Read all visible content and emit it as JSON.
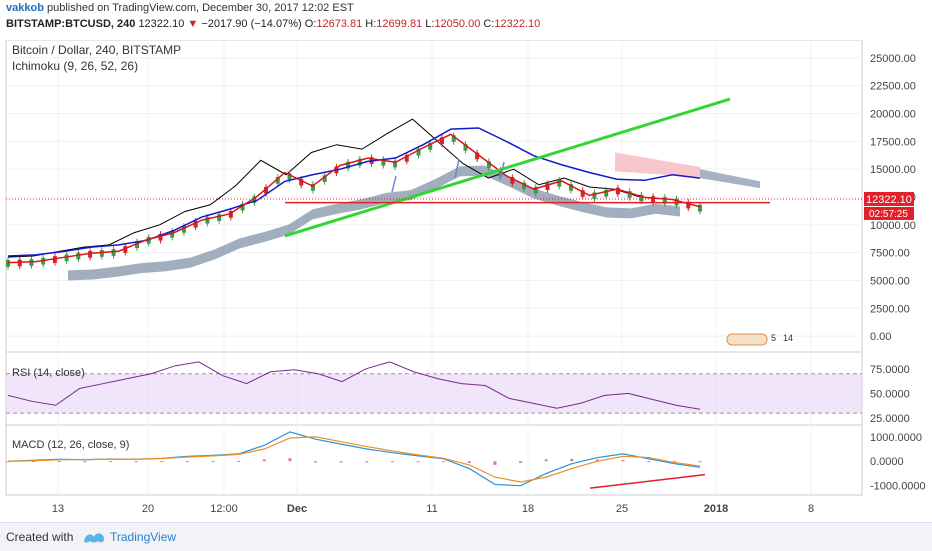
{
  "header": {
    "author": "vakkob",
    "published_text": "published on TradingView.com, December 30, 2017 12:02 EST",
    "symbol": "BITSTAMP:BTCUSD, 240",
    "last": "12322.10",
    "change": "−2017.90 (−14.07%)",
    "open_label": "O:",
    "open": "12673.81",
    "high_label": "H:",
    "high": "12699.81",
    "low_label": "L:",
    "low": "12050.00",
    "close_label": "C:",
    "close": "12322.10"
  },
  "footer": {
    "created_with": "Created with",
    "brand": "TradingView"
  },
  "colors": {
    "price_line": "#000000",
    "candle_up": "#3c9b45",
    "candle_down": "#d1262c",
    "kijun": "#1419c8",
    "tenkan": "#d9141b",
    "cloud": "#8193a8",
    "cloud_red": "#f5b9c0",
    "trend_green": "#32d632",
    "support_red": "#e2202a",
    "rsi": "#7a2a8f",
    "rsi_band": "#e8d6f5",
    "macd": "#2b93d7",
    "signal": "#f28e20"
  },
  "chart_data": [
    {
      "type": "line",
      "title": "Bitcoin / Dollar, 240, BITSTAMP",
      "indicator": "Ichimoku (9, 26, 52, 26)",
      "ylim": [
        -1250,
        26250
      ],
      "y_ticks": [
        "25000.00",
        "22500.00",
        "20000.00",
        "17500.00",
        "15000.00",
        "12500.00",
        "10000.00",
        "7500.00",
        "5000.00",
        "2500.00",
        "0.00"
      ],
      "x_ticks": [
        "13",
        "20",
        "12:00",
        "Dec",
        "11",
        "18",
        "25",
        "2018",
        "8"
      ],
      "price_label": "12322.10",
      "countdown_label": "02:57:25",
      "support_level": 12000,
      "badge": [
        "5",
        "14"
      ],
      "price_series": [
        7100,
        7200,
        7600,
        8000,
        8200,
        9300,
        10000,
        11200,
        11800,
        13500,
        15800,
        14500,
        16500,
        17200,
        16800,
        18200,
        19500,
        17500,
        15500,
        14200,
        15000,
        13600,
        14200,
        13400,
        13200,
        12500
      ],
      "kijun": [
        7200,
        7300,
        7600,
        8000,
        8200,
        8600,
        9500,
        10700,
        11400,
        12200,
        13900,
        14500,
        15000,
        15700,
        16000,
        17200,
        18600,
        18700,
        17500,
        16200,
        15400,
        14700,
        14100,
        14000,
        14500,
        14200
      ]
    },
    {
      "type": "line",
      "title": "RSI (14, close)",
      "ylim": [
        20,
        90
      ],
      "y_ticks": [
        "75.0000",
        "50.0000",
        "25.0000"
      ],
      "band": [
        30,
        70
      ],
      "values": [
        48,
        42,
        38,
        55,
        60,
        65,
        70,
        78,
        82,
        68,
        60,
        72,
        74,
        70,
        62,
        75,
        82,
        72,
        65,
        60,
        58,
        45,
        40,
        35,
        40,
        48,
        50,
        44,
        38,
        34
      ]
    },
    {
      "type": "line",
      "title": "MACD (12, 26, close, 9)",
      "ylim": [
        -1300,
        1400
      ],
      "y_ticks": [
        "1000.0000",
        "0.0000",
        "-1000.0000"
      ],
      "macd": [
        0,
        40,
        80,
        60,
        90,
        80,
        120,
        200,
        240,
        300,
        650,
        1200,
        900,
        700,
        500,
        350,
        220,
        100,
        -300,
        -950,
        -1000,
        -500,
        -100,
        150,
        300,
        100,
        -100,
        -250
      ],
      "signal": [
        0,
        20,
        60,
        70,
        80,
        80,
        110,
        170,
        220,
        280,
        500,
        950,
        1000,
        800,
        600,
        420,
        260,
        120,
        -150,
        -650,
        -850,
        -650,
        -300,
        0,
        200,
        150,
        -50,
        -200
      ]
    }
  ]
}
